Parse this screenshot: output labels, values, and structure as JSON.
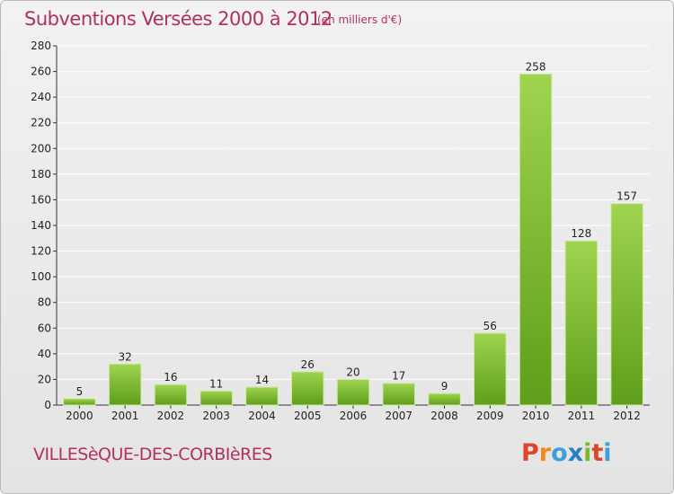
{
  "title": "Subventions Versées 2000 à 2012",
  "unit_note": "(en milliers d'€)",
  "commune": "VILLESèQUE-DES-CORBIèRES",
  "logo": {
    "text": "Proxiti",
    "letter_colors": [
      "#e0452c",
      "#f08a1c",
      "#3aa0db",
      "#2a7fc4",
      "#7cb82f",
      "#e0452c",
      "#3aa0db"
    ]
  },
  "colors": {
    "bar_top": "#9fd44f",
    "bar_bottom": "#5e9e1a",
    "title": "#b03060",
    "grid": "#ffffff"
  },
  "chart_data": {
    "type": "bar",
    "title": "Subventions Versées 2000 à 2012",
    "subtitle": "(en milliers d'€)",
    "categories": [
      "2000",
      "2001",
      "2002",
      "2003",
      "2004",
      "2005",
      "2006",
      "2007",
      "2008",
      "2009",
      "2010",
      "2011",
      "2012"
    ],
    "values": [
      5,
      32,
      16,
      11,
      14,
      26,
      20,
      17,
      9,
      56,
      258,
      128,
      157
    ],
    "ylim": [
      0,
      280
    ],
    "yticks": [
      0,
      20,
      40,
      60,
      80,
      100,
      120,
      140,
      160,
      180,
      200,
      220,
      240,
      260,
      280
    ],
    "grid": true,
    "xlabel": "",
    "ylabel": ""
  }
}
